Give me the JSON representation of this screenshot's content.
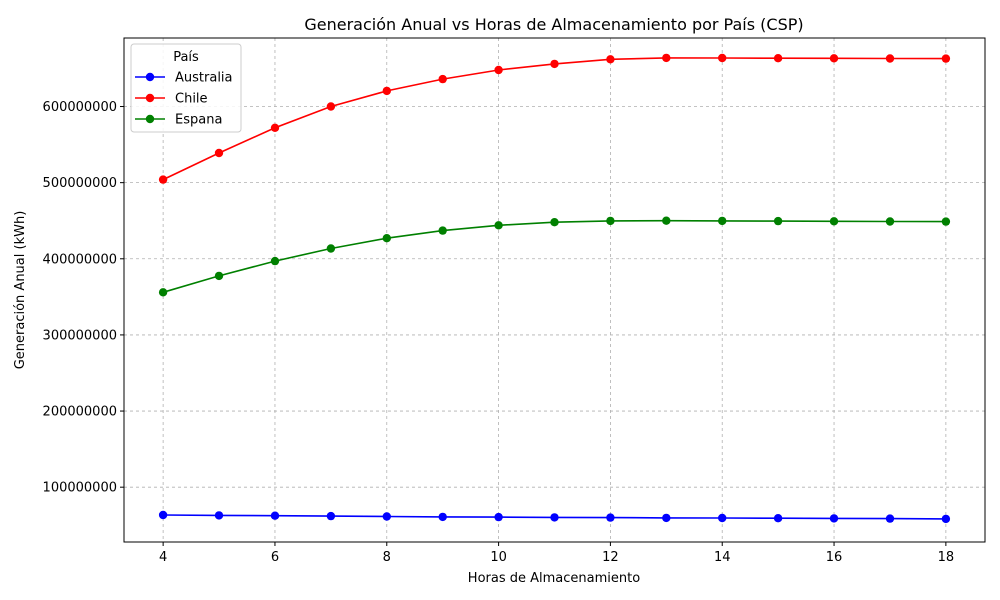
{
  "chart_data": {
    "type": "line",
    "title": "Generación Anual vs Horas de Almacenamiento por País (CSP)",
    "xlabel": "Horas de Almacenamiento",
    "ylabel": "Generación Anual (kWh)",
    "x": [
      4,
      5,
      6,
      7,
      8,
      9,
      10,
      11,
      12,
      13,
      14,
      15,
      16,
      17,
      18
    ],
    "xlim": [
      3.3,
      18.7
    ],
    "ylim": [
      28000000,
      690000000
    ],
    "xticks": [
      "4",
      "6",
      "8",
      "10",
      "12",
      "14",
      "16",
      "18"
    ],
    "yticks": [
      "100000000",
      "200000000",
      "300000000",
      "400000000",
      "500000000",
      "600000000"
    ],
    "grid": true,
    "legend": {
      "title": "País",
      "position": "top-left"
    },
    "series": [
      {
        "name": "Australia",
        "color": "#0000ff",
        "values": [
          63500000,
          63000000,
          62500000,
          62000000,
          61500000,
          61000000,
          60700000,
          60300000,
          60000000,
          59700000,
          59500000,
          59300000,
          59000000,
          58700000,
          58400000
        ]
      },
      {
        "name": "Chile",
        "color": "#ff0000",
        "values": [
          504000000,
          539000000,
          572000000,
          600000000,
          620500000,
          636000000,
          648000000,
          656000000,
          662000000,
          663800000,
          663700000,
          663500000,
          663300000,
          663100000,
          662900000
        ]
      },
      {
        "name": "Espana",
        "color": "#008000",
        "values": [
          356000000,
          377500000,
          397000000,
          413500000,
          427000000,
          437000000,
          444000000,
          448000000,
          449700000,
          450000000,
          449700000,
          449500000,
          449300000,
          449000000,
          448800000
        ]
      }
    ]
  }
}
